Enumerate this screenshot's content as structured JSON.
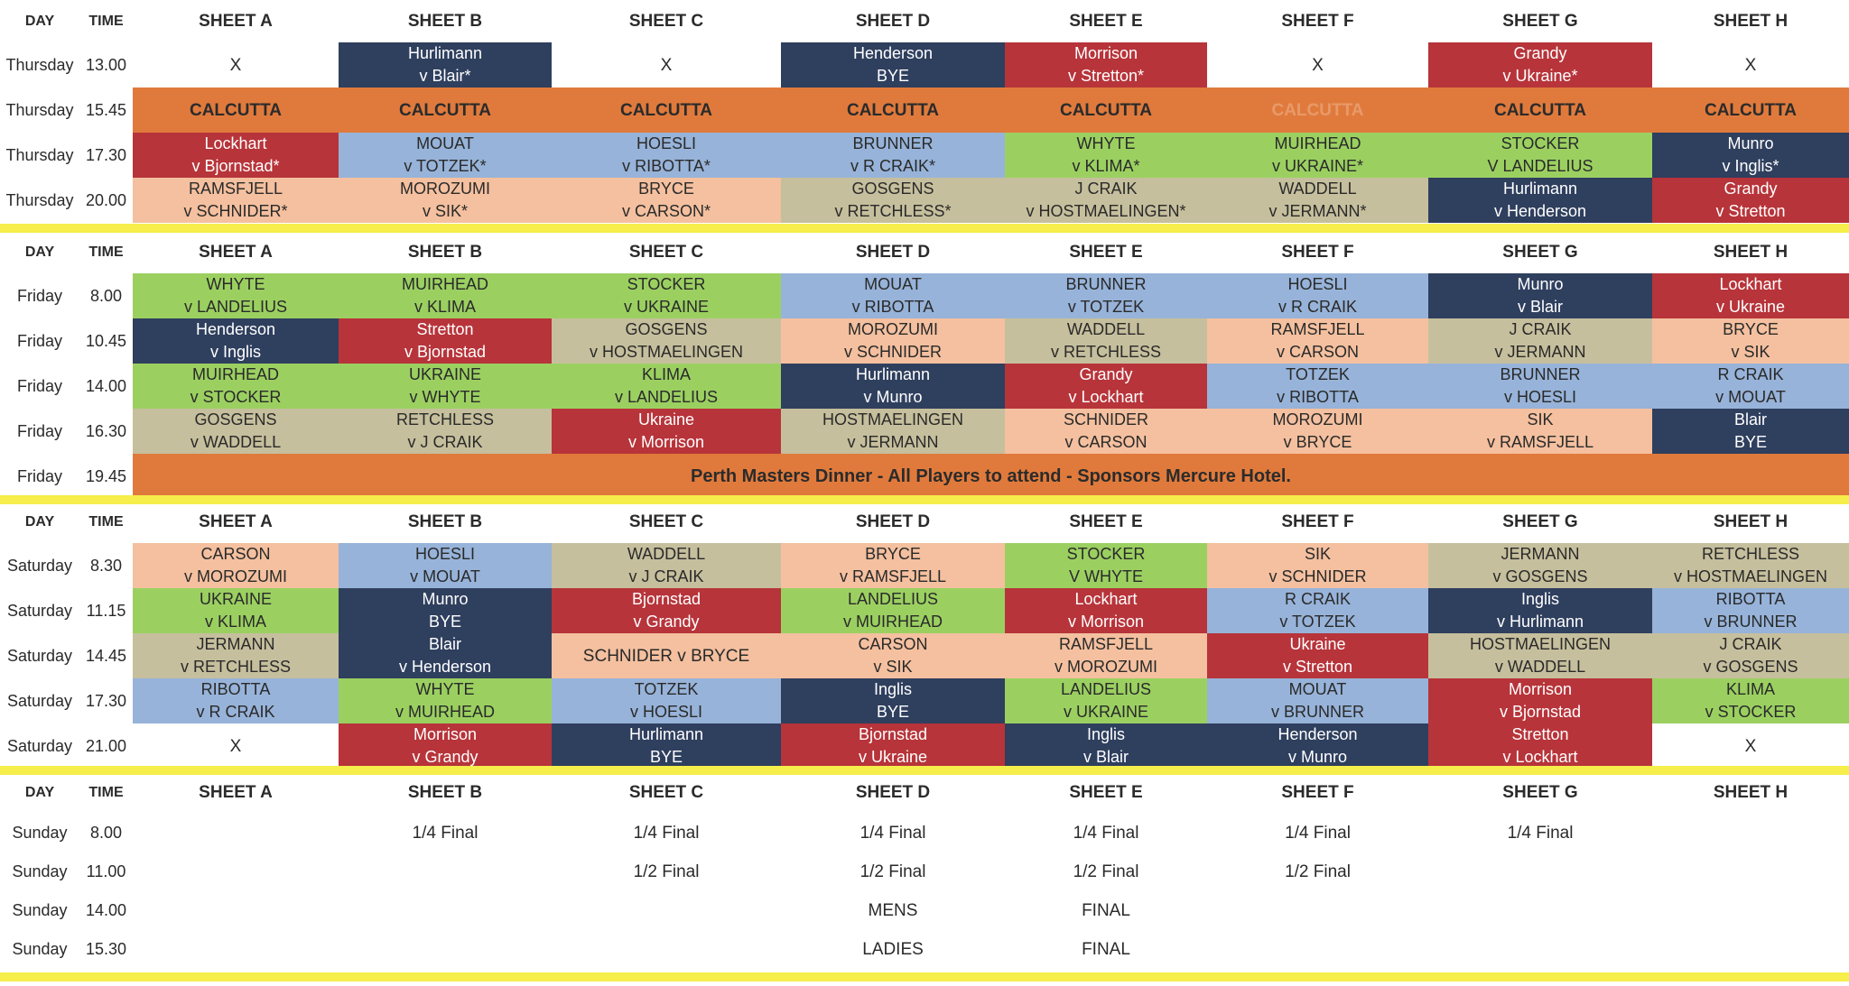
{
  "colors": {
    "navy": "#2f3f5e",
    "light-blue": "#97b3d9",
    "red": "#b7343a",
    "green": "#9bd061",
    "peach": "#f4c09f",
    "khaki": "#c6bf9d",
    "orange": "#e07a3c",
    "white": "#ffffff",
    "separator-yellow": "#f6ee4a"
  },
  "color_codes": {
    "nv": "navy",
    "lb": "light-blue",
    "r": "red",
    "g": "green",
    "p": "peach",
    "k": "khaki",
    "o": "orange",
    "w": "white"
  },
  "sheets": [
    "SHEET A",
    "SHEET B",
    "SHEET C",
    "SHEET D",
    "SHEET E",
    "SHEET F",
    "SHEET G",
    "SHEET H"
  ],
  "day_header": "DAY",
  "time_header": "TIME",
  "sections": [
    {
      "rows": [
        {
          "day": "Thursday",
          "time": "13.00",
          "cells": [
            [
              "w",
              "X"
            ],
            [
              "nv",
              "Hurlimann",
              "v Blair*"
            ],
            [
              "w",
              "X"
            ],
            [
              "nv",
              "Henderson",
              "BYE"
            ],
            [
              "r",
              "Morrison",
              "v Stretton*"
            ],
            [
              "w",
              "X"
            ],
            [
              "r",
              "Grandy",
              "v Ukraine*"
            ],
            [
              "w",
              "X"
            ]
          ]
        },
        {
          "day": "Thursday",
          "time": "15.45",
          "cells": [
            [
              "o",
              "CALCUTTA"
            ],
            [
              "o",
              "CALCUTTA"
            ],
            [
              "o",
              "CALCUTTA"
            ],
            [
              "o",
              "CALCUTTA"
            ],
            [
              "o",
              "CALCUTTA"
            ],
            [
              "o",
              "CALCUTTA"
            ],
            [
              "o",
              "CALCUTTA"
            ],
            [
              "o",
              "CALCUTTA"
            ]
          ]
        },
        {
          "day": "Thursday",
          "time": "17.30",
          "cells": [
            [
              "r",
              "Lockhart",
              "v Bjornstad*"
            ],
            [
              "lb",
              "MOUAT",
              "v TOTZEK*"
            ],
            [
              "lb",
              "HOESLI",
              "v RIBOTTA*"
            ],
            [
              "lb",
              "BRUNNER",
              "v R CRAIK*"
            ],
            [
              "g",
              "WHYTE",
              "v KLIMA*"
            ],
            [
              "g",
              "MUIRHEAD",
              "v UKRAINE*"
            ],
            [
              "g",
              "STOCKER",
              "V LANDELIUS"
            ],
            [
              "nv",
              "Munro",
              "v Inglis*"
            ]
          ]
        },
        {
          "day": "Thursday",
          "time": "20.00",
          "cells": [
            [
              "p",
              "RAMSFJELL",
              "v SCHNIDER*"
            ],
            [
              "p",
              "MOROZUMI",
              "v SIK*"
            ],
            [
              "p",
              "BRYCE",
              "v CARSON*"
            ],
            [
              "k",
              "GOSGENS",
              "v RETCHLESS*"
            ],
            [
              "k",
              "J CRAIK",
              "v HOSTMAELINGEN*"
            ],
            [
              "k",
              "WADDELL",
              "v JERMANN*"
            ],
            [
              "nv",
              "Hurlimann",
              "v Henderson"
            ],
            [
              "r",
              "Grandy",
              "v Stretton"
            ]
          ]
        }
      ]
    },
    {
      "rows": [
        {
          "day": "Friday",
          "time": "8.00",
          "cells": [
            [
              "g",
              "WHYTE",
              "v LANDELIUS"
            ],
            [
              "g",
              "MUIRHEAD",
              "v KLIMA"
            ],
            [
              "g",
              "STOCKER",
              "v UKRAINE"
            ],
            [
              "lb",
              "MOUAT",
              "v RIBOTTA"
            ],
            [
              "lb",
              "BRUNNER",
              "v TOTZEK"
            ],
            [
              "lb",
              "HOESLI",
              "v R CRAIK"
            ],
            [
              "nv",
              "Munro",
              "v Blair"
            ],
            [
              "r",
              "Lockhart",
              "v Ukraine"
            ]
          ]
        },
        {
          "day": "Friday",
          "time": "10.45",
          "cells": [
            [
              "nv",
              "Henderson",
              "v Inglis"
            ],
            [
              "r",
              "Stretton",
              "v Bjornstad"
            ],
            [
              "k",
              "GOSGENS",
              "v HOSTMAELINGEN"
            ],
            [
              "p",
              "MOROZUMI",
              "v SCHNIDER"
            ],
            [
              "k",
              "WADDELL",
              "v RETCHLESS"
            ],
            [
              "p",
              "RAMSFJELL",
              "v CARSON"
            ],
            [
              "k",
              "J CRAIK",
              "v JERMANN"
            ],
            [
              "p",
              "BRYCE",
              "v SIK"
            ]
          ]
        },
        {
          "day": "Friday",
          "time": "14.00",
          "cells": [
            [
              "g",
              "MUIRHEAD",
              "v STOCKER"
            ],
            [
              "g",
              "UKRAINE",
              "v WHYTE"
            ],
            [
              "g",
              "KLIMA",
              "v LANDELIUS"
            ],
            [
              "nv",
              "Hurlimann",
              "v Munro"
            ],
            [
              "r",
              "Grandy",
              "v Lockhart"
            ],
            [
              "lb",
              "TOTZEK",
              "v RIBOTTA"
            ],
            [
              "lb",
              "BRUNNER",
              "v HOESLI"
            ],
            [
              "lb",
              "R CRAIK",
              "v MOUAT"
            ]
          ]
        },
        {
          "day": "Friday",
          "time": "16.30",
          "cells": [
            [
              "k",
              "GOSGENS",
              "v WADDELL"
            ],
            [
              "k",
              "RETCHLESS",
              "v J CRAIK"
            ],
            [
              "r",
              "Ukraine",
              "v Morrison"
            ],
            [
              "k",
              "HOSTMAELINGEN",
              "v JERMANN"
            ],
            [
              "p",
              "SCHNIDER",
              "v CARSON"
            ],
            [
              "p",
              "MOROZUMI",
              "v BRYCE"
            ],
            [
              "p",
              "SIK",
              "v RAMSFJELL"
            ],
            [
              "nv",
              "Blair",
              "BYE"
            ]
          ]
        },
        {
          "day": "Friday",
          "time": "19.45",
          "banner": "Perth Masters Dinner - All Players to attend - Sponsors Mercure Hotel."
        }
      ]
    },
    {
      "rows": [
        {
          "day": "Saturday",
          "time": "8.30",
          "cells": [
            [
              "p",
              "CARSON",
              "v MOROZUMI"
            ],
            [
              "lb",
              "HOESLI",
              "v MOUAT"
            ],
            [
              "k",
              "WADDELL",
              "v J CRAIK"
            ],
            [
              "p",
              "BRYCE",
              "v RAMSFJELL"
            ],
            [
              "g",
              "STOCKER",
              "V WHYTE"
            ],
            [
              "p",
              "SIK",
              "v SCHNIDER"
            ],
            [
              "k",
              "JERMANN",
              "v GOSGENS"
            ],
            [
              "k",
              "RETCHLESS",
              "v HOSTMAELINGEN"
            ]
          ]
        },
        {
          "day": "Saturday",
          "time": "11.15",
          "cells": [
            [
              "g",
              "UKRAINE",
              "v KLIMA"
            ],
            [
              "nv",
              "Munro",
              "BYE"
            ],
            [
              "r",
              "Bjornstad",
              "v Grandy"
            ],
            [
              "g",
              "LANDELIUS",
              "v MUIRHEAD"
            ],
            [
              "r",
              "Lockhart",
              "v Morrison"
            ],
            [
              "lb",
              "R CRAIK",
              "v TOTZEK"
            ],
            [
              "nv",
              "Inglis",
              "v Hurlimann"
            ],
            [
              "lb",
              "RIBOTTA",
              "v BRUNNER"
            ]
          ]
        },
        {
          "day": "Saturday",
          "time": "14.45",
          "cells": [
            [
              "k",
              "JERMANN",
              "v RETCHLESS"
            ],
            [
              "nv",
              "Blair",
              "v Henderson"
            ],
            [
              "p",
              "SCHNIDER v BRYCE"
            ],
            [
              "p",
              "CARSON",
              "v SIK"
            ],
            [
              "p",
              "RAMSFJELL",
              "v MOROZUMI"
            ],
            [
              "r",
              "Ukraine",
              "v Stretton"
            ],
            [
              "k",
              "HOSTMAELINGEN",
              "v WADDELL"
            ],
            [
              "k",
              "J CRAIK",
              "v GOSGENS"
            ]
          ]
        },
        {
          "day": "Saturday",
          "time": "17.30",
          "cells": [
            [
              "lb",
              "RIBOTTA",
              "v R CRAIK"
            ],
            [
              "g",
              "WHYTE",
              "v MUIRHEAD"
            ],
            [
              "lb",
              "TOTZEK",
              "v HOESLI"
            ],
            [
              "nv",
              "Inglis",
              "BYE"
            ],
            [
              "g",
              "LANDELIUS",
              "v UKRAINE"
            ],
            [
              "lb",
              "MOUAT",
              "v BRUNNER"
            ],
            [
              "r",
              "Morrison",
              "v Bjornstad"
            ],
            [
              "g",
              "KLIMA",
              "v STOCKER"
            ]
          ]
        },
        {
          "day": "Saturday",
          "time": "21.00",
          "cells": [
            [
              "w",
              "X"
            ],
            [
              "r",
              "Morrison",
              "v Grandy"
            ],
            [
              "nv",
              "Hurlimann",
              "BYE"
            ],
            [
              "r",
              "Bjornstad",
              "v Ukraine"
            ],
            [
              "nv",
              "Inglis",
              "v Blair"
            ],
            [
              "nv",
              "Henderson",
              "v Munro"
            ],
            [
              "r",
              "Stretton",
              "v Lockhart"
            ],
            [
              "w",
              "X"
            ]
          ]
        }
      ]
    },
    {
      "rows": [
        {
          "day": "Sunday",
          "time": "8.00",
          "cells": [
            [
              "w",
              ""
            ],
            [
              "w",
              "1/4 Final"
            ],
            [
              "w",
              "1/4 Final"
            ],
            [
              "w",
              "1/4 Final"
            ],
            [
              "w",
              "1/4 Final"
            ],
            [
              "w",
              "1/4 Final"
            ],
            [
              "w",
              "1/4 Final"
            ],
            [
              "w",
              ""
            ]
          ]
        },
        {
          "day": "Sunday",
          "time": "11.00",
          "cells": [
            [
              "w",
              ""
            ],
            [
              "w",
              ""
            ],
            [
              "w",
              "1/2 Final"
            ],
            [
              "w",
              "1/2 Final"
            ],
            [
              "w",
              "1/2 Final"
            ],
            [
              "w",
              "1/2 Final"
            ],
            [
              "w",
              ""
            ],
            [
              "w",
              ""
            ]
          ]
        },
        {
          "day": "Sunday",
          "time": "14.00",
          "cells": [
            [
              "w",
              ""
            ],
            [
              "w",
              ""
            ],
            [
              "w",
              ""
            ],
            [
              "w",
              "MENS"
            ],
            [
              "w",
              "FINAL"
            ],
            [
              "w",
              ""
            ],
            [
              "w",
              ""
            ],
            [
              "w",
              ""
            ]
          ]
        },
        {
          "day": "Sunday",
          "time": "15.30",
          "cells": [
            [
              "w",
              ""
            ],
            [
              "w",
              ""
            ],
            [
              "w",
              ""
            ],
            [
              "w",
              "LADIES"
            ],
            [
              "w",
              "FINAL"
            ],
            [
              "w",
              ""
            ],
            [
              "w",
              ""
            ],
            [
              "w",
              ""
            ]
          ]
        }
      ]
    }
  ]
}
